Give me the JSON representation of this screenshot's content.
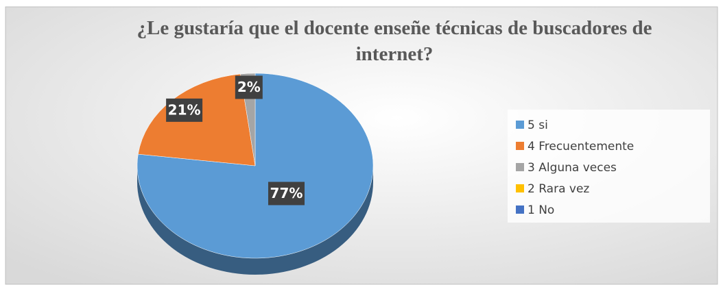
{
  "chart_data": {
    "type": "pie",
    "title": "¿Le gustaría que el docente enseñe técnicas de buscadores de internet?",
    "categories": [
      "5 si",
      "4 Frecuentemente",
      "3 Alguna veces",
      "2 Rara vez",
      "1 No"
    ],
    "values": [
      77,
      21,
      2,
      0,
      0
    ],
    "value_labels": [
      "77%",
      "21%",
      "2%",
      null,
      null
    ],
    "colors": [
      "#5b9bd5",
      "#ed7d31",
      "#a5a5a5",
      "#ffc000",
      "#4472c4"
    ],
    "legend": "right"
  }
}
